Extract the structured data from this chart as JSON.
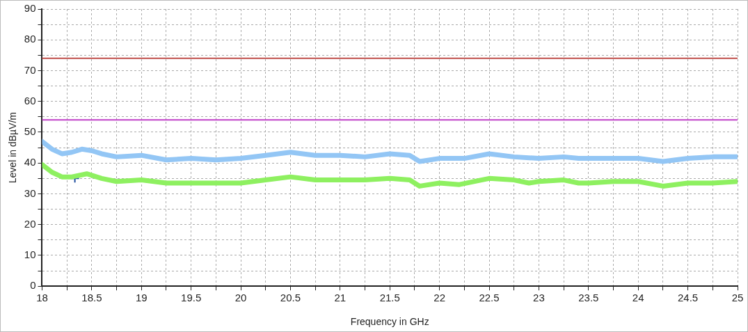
{
  "chart_data": {
    "type": "line",
    "xlabel": "Frequency in GHz",
    "ylabel": "Level in dBµV/m",
    "xlim": [
      18,
      25
    ],
    "xticks": [
      18,
      {
        "value": 18.25,
        "label": null
      },
      18.5,
      {
        "value": 18.75,
        "label": null
      },
      19,
      {
        "value": 19.25,
        "label": null
      },
      19.5,
      {
        "value": 19.75,
        "label": null
      },
      20,
      {
        "value": 20.25,
        "label": null
      },
      20.5,
      {
        "value": 20.75,
        "label": null
      },
      21,
      {
        "value": 21.25,
        "label": null
      },
      21.5,
      {
        "value": 21.75,
        "label": null
      },
      22,
      {
        "value": 22.25,
        "label": null
      },
      22.5,
      {
        "value": 22.75,
        "label": null
      },
      23,
      {
        "value": 23.25,
        "label": null
      },
      23.5,
      {
        "value": 23.75,
        "label": null
      },
      24,
      {
        "value": 24.25,
        "label": null
      },
      24.5,
      {
        "value": 24.75,
        "label": null
      },
      25
    ],
    "ylim": [
      0,
      90
    ],
    "yticks": [
      0,
      {
        "value": 5,
        "label": null
      },
      10,
      {
        "value": 15,
        "label": null
      },
      20,
      {
        "value": 25,
        "label": null
      },
      30,
      {
        "value": 35,
        "label": null
      },
      40,
      {
        "value": 45,
        "label": null
      },
      50,
      {
        "value": 55,
        "label": null
      },
      60,
      {
        "value": 65,
        "label": null
      },
      70,
      {
        "value": 75,
        "label": null
      },
      80,
      {
        "value": 85,
        "label": null
      },
      90
    ],
    "grid": true,
    "legend": false,
    "marker": "none",
    "line_style": "solid",
    "ref_lines": [
      {
        "axis": "y",
        "value": 74,
        "color": "#c0504d"
      },
      {
        "axis": "y",
        "value": 54,
        "color": "#c040c8"
      }
    ],
    "series": [
      {
        "color": "#93c6f5",
        "x": [
          18,
          18.1,
          18.2,
          18.3,
          18.4,
          18.5,
          18.6,
          18.75,
          19,
          19.25,
          19.5,
          19.75,
          20,
          20.25,
          20.5,
          20.75,
          21,
          21.25,
          21.5,
          21.7,
          21.8,
          22,
          22.25,
          22.5,
          22.75,
          23,
          23.25,
          23.4,
          23.5,
          23.75,
          24,
          24.25,
          24.5,
          24.75,
          25
        ],
        "values": [
          47,
          44.5,
          43,
          43.5,
          44.5,
          44,
          43,
          42,
          42.5,
          41,
          41.5,
          41,
          41.5,
          42.5,
          43.5,
          42.5,
          42.5,
          42,
          43,
          42.5,
          40.5,
          41.5,
          41.5,
          43,
          42,
          41.5,
          42,
          41.5,
          41.5,
          41.5,
          41.5,
          40.5,
          41.5,
          42,
          42
        ]
      },
      {
        "color": "#8ef060",
        "x": [
          18,
          18.1,
          18.2,
          18.3,
          18.45,
          18.6,
          18.75,
          19,
          19.25,
          19.5,
          19.75,
          20,
          20.25,
          20.5,
          20.75,
          21,
          21.25,
          21.5,
          21.7,
          21.8,
          22,
          22.2,
          22.5,
          22.75,
          22.9,
          23,
          23.25,
          23.4,
          23.5,
          23.75,
          24,
          24.25,
          24.5,
          24.75,
          25
        ],
        "values": [
          39.5,
          37,
          35.5,
          35.5,
          36.5,
          35,
          34,
          34.5,
          33.5,
          33.5,
          33.5,
          33.5,
          34.5,
          35.5,
          34.5,
          34.5,
          34.5,
          35,
          34.5,
          32.5,
          33.5,
          33,
          35,
          34.5,
          33.5,
          34,
          34.5,
          33.5,
          33.5,
          34,
          34,
          32.5,
          33.5,
          33.5,
          34
        ]
      },
      {
        "type": "scatter",
        "marker": "cross",
        "color": "#1f4e9e",
        "x": [
          18.33
        ],
        "values": [
          35
        ]
      }
    ]
  }
}
